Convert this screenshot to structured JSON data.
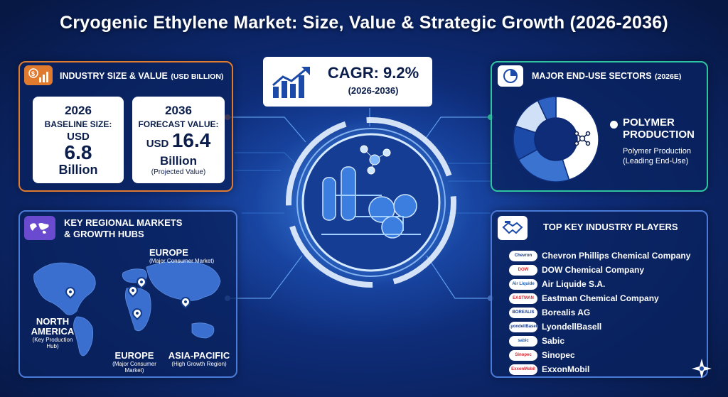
{
  "title": "Cryogenic Ethylene Market: Size, Value & Strategic Growth (2026-2036)",
  "industry": {
    "header": "INDUSTRY SIZE & VALUE",
    "header_unit": "(USD BILLION)",
    "baseline": {
      "year": "2026",
      "label": "BASELINE SIZE:",
      "currency": "USD",
      "value": "6.8",
      "unit": "Billion"
    },
    "forecast": {
      "year": "2036",
      "label": "FORECAST VALUE:",
      "currency": "USD",
      "value": "16.4",
      "unit": "Billion",
      "note": "(Projected Value)"
    }
  },
  "cagr": {
    "label": "CAGR: 9.2%",
    "period": "(2026-2036)"
  },
  "end_use": {
    "header": "MAJOR END-USE SECTORS",
    "header_year": "(2026E)",
    "legend_title_1": "POLYMER",
    "legend_title_2": "PRODUCTION",
    "legend_sub_1": "Polymer Production",
    "legend_sub_2": "(Leading End-Use)",
    "colors": [
      "#ffffff",
      "#3a73d0",
      "#1c4aa8",
      "#cfe0f7",
      "#2d62c2"
    ],
    "slices": [
      45,
      22,
      13,
      13,
      7
    ]
  },
  "regions": {
    "header_1": "KEY REGIONAL MARKETS",
    "header_2": "& GROWTH HUBS",
    "europe_top": "EUROPE",
    "europe_top_sub": "(Major Consumer Market)",
    "north_america_1": "NORTH",
    "north_america_2": "AMERICA",
    "north_america_sub_1": "(Key Production",
    "north_america_sub_2": "Hub)",
    "europe_bottom": "EUROPE",
    "europe_bottom_sub_1": "(Major Consumer",
    "europe_bottom_sub_2": "Market)",
    "asia": "ASIA-PACIFIC",
    "asia_sub": "(High Growth Region)"
  },
  "players": {
    "header": "TOP KEY INDUSTRY PLAYERS",
    "items": [
      {
        "name": "Chevron Phillips Chemical Company",
        "logo": "Chevron",
        "logo_color": "#1a3a8a"
      },
      {
        "name": "DOW Chemical Company",
        "logo": "DOW",
        "logo_color": "#d8262e"
      },
      {
        "name": "Air Liquide S.A.",
        "logo": "Air Liquide",
        "logo_color": "#1a5bb0"
      },
      {
        "name": "Eastman Chemical Company",
        "logo": "EASTMAN",
        "logo_color": "#d8262e"
      },
      {
        "name": "Borealis AG",
        "logo": "BOREALIS",
        "logo_color": "#1a3a8a"
      },
      {
        "name": "LyondellBasell",
        "logo": "LyondellBasell",
        "logo_color": "#1a3a8a"
      },
      {
        "name": "Sabic",
        "logo": "sabic",
        "logo_color": "#1a5bb0"
      },
      {
        "name": "Sinopec",
        "logo": "Sinopec",
        "logo_color": "#d8262e"
      },
      {
        "name": "ExxonMobil",
        "logo": "ExxonMobil",
        "logo_color": "#d8262e"
      }
    ]
  }
}
